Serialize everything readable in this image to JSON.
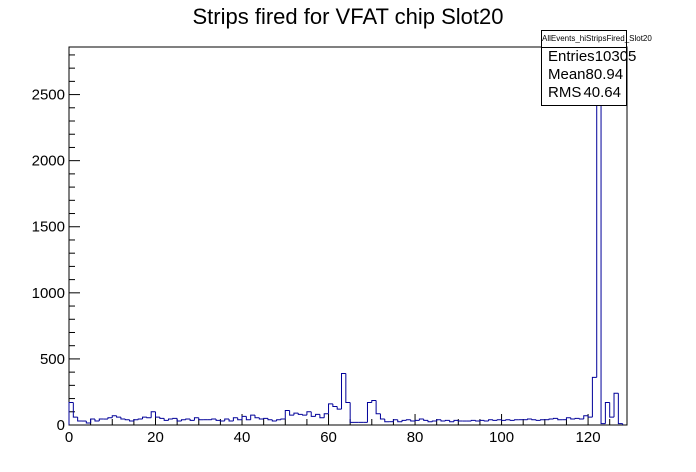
{
  "chart_data": {
    "type": "histogram",
    "title": "Strips fired for VFAT chip Slot20",
    "xlabel": "",
    "ylabel": "",
    "xlim": [
      0,
      129
    ],
    "ylim": [
      0,
      2860
    ],
    "x_ticks": [
      "0",
      "20",
      "40",
      "60",
      "80",
      "100",
      "120"
    ],
    "y_ticks": [
      "0",
      "500",
      "1000",
      "1500",
      "2000",
      "2500"
    ],
    "bin_width": 1,
    "values": [
      170,
      60,
      30,
      30,
      15,
      45,
      30,
      45,
      45,
      55,
      70,
      60,
      45,
      40,
      30,
      40,
      45,
      60,
      55,
      100,
      60,
      50,
      35,
      45,
      50,
      30,
      40,
      45,
      35,
      55,
      40,
      40,
      40,
      45,
      35,
      30,
      45,
      30,
      55,
      40,
      65,
      40,
      75,
      55,
      45,
      50,
      40,
      30,
      40,
      45,
      110,
      75,
      90,
      80,
      75,
      100,
      65,
      80,
      55,
      85,
      160,
      140,
      120,
      390,
      170,
      20,
      20,
      20,
      20,
      170,
      185,
      85,
      45,
      25,
      25,
      40,
      25,
      35,
      40,
      30,
      35,
      45,
      35,
      25,
      30,
      40,
      30,
      35,
      25,
      35,
      30,
      30,
      30,
      35,
      30,
      35,
      30,
      40,
      35,
      40,
      35,
      40,
      35,
      40,
      40,
      40,
      45,
      40,
      35,
      40,
      40,
      45,
      50,
      40,
      40,
      55,
      45,
      50,
      45,
      70,
      60,
      360,
      2830,
      10,
      170,
      60,
      240,
      10
    ],
    "color": "#000099",
    "stats": {
      "name": "AllEvents_hiStripsFired_Slot20",
      "rows": [
        {
          "label": "Entries",
          "value": "10305"
        },
        {
          "label": "Mean",
          "value": "80.94"
        },
        {
          "label": "RMS",
          "value": "40.64"
        }
      ]
    }
  }
}
